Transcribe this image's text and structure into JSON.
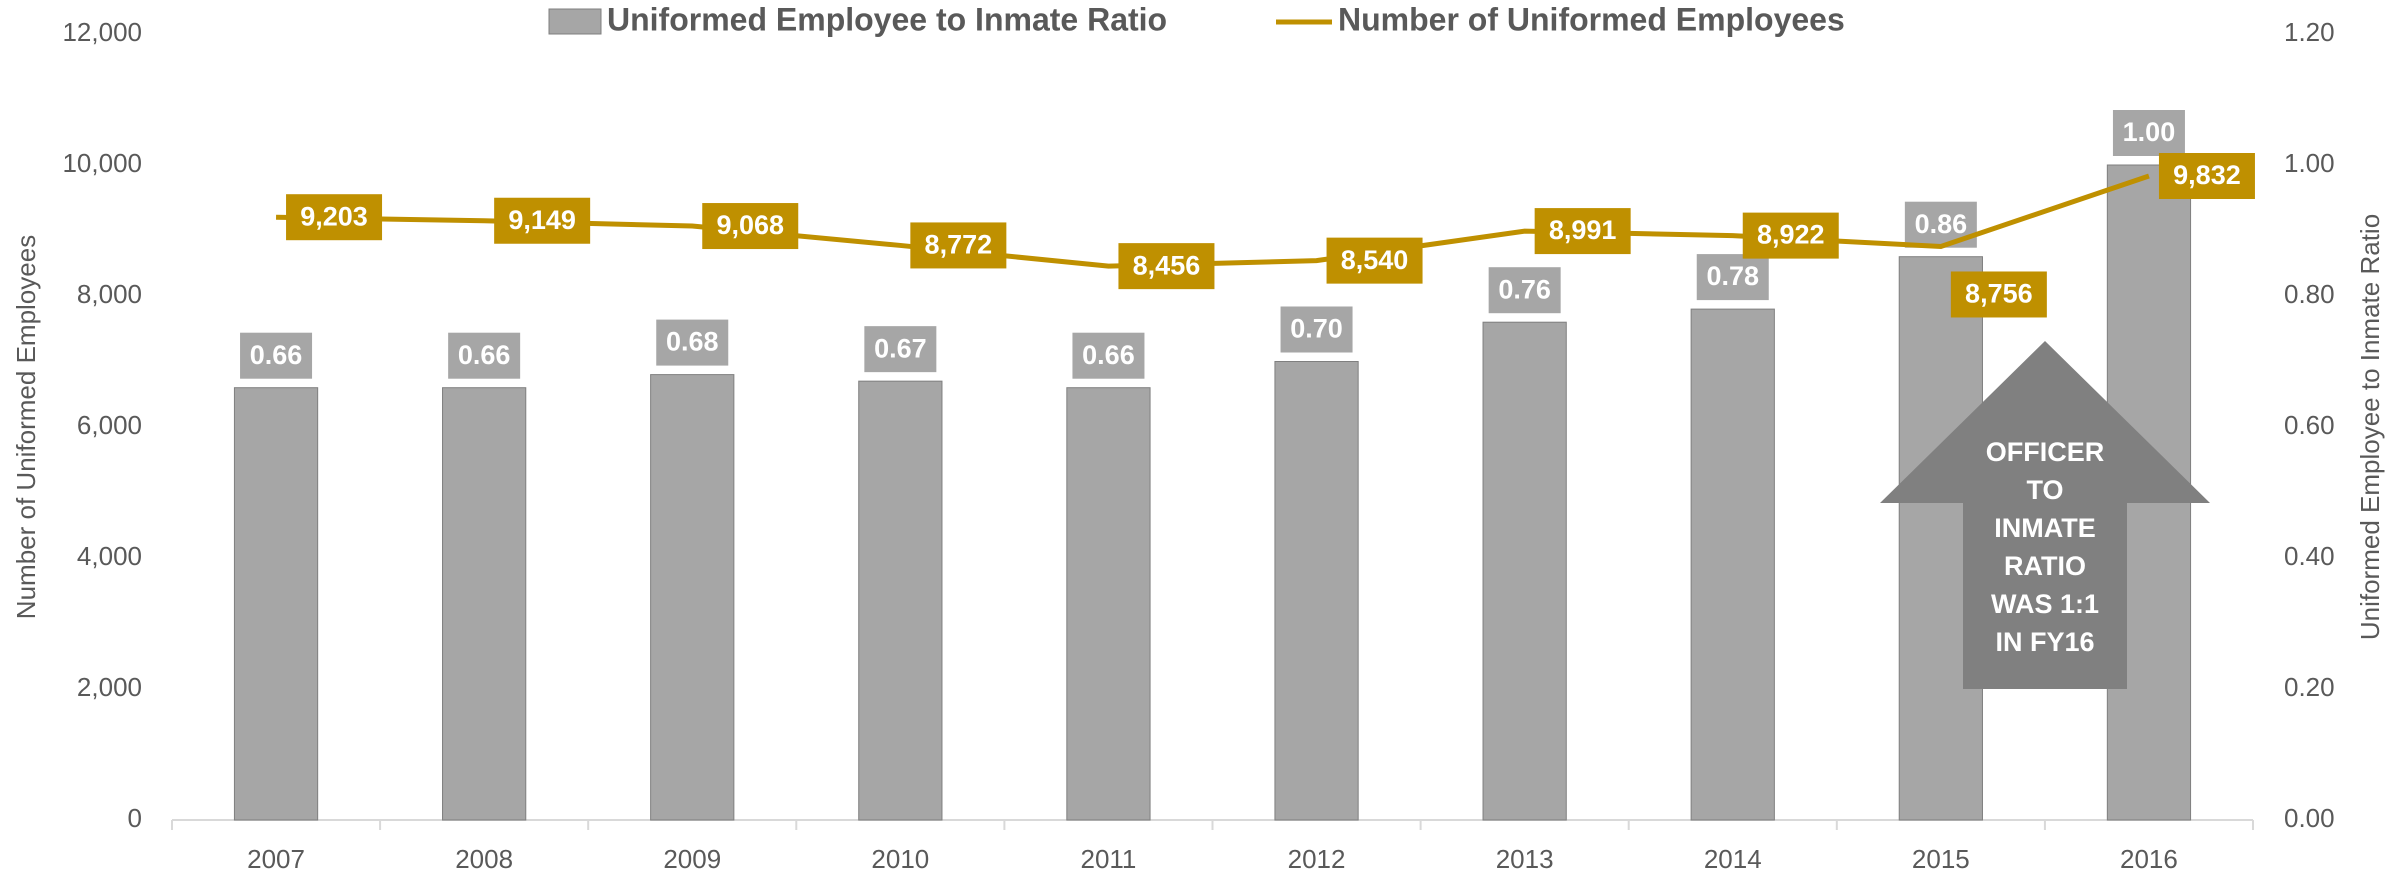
{
  "chart_data": {
    "type": "bar",
    "categories": [
      "2007",
      "2008",
      "2009",
      "2010",
      "2011",
      "2012",
      "2013",
      "2014",
      "2015",
      "2016"
    ],
    "series": [
      {
        "name": "Uniformed Employee to Inmate Ratio",
        "type": "bar",
        "axis": "y2",
        "color": "#a6a6a6",
        "values": [
          0.66,
          0.66,
          0.68,
          0.67,
          0.66,
          0.7,
          0.76,
          0.78,
          0.86,
          1.0
        ],
        "value_labels": [
          "0.66",
          "0.66",
          "0.68",
          "0.67",
          "0.66",
          "0.70",
          "0.76",
          "0.78",
          "0.86",
          "1.00"
        ]
      },
      {
        "name": "Number of Uniformed Employees",
        "type": "line",
        "color": "#bf9000",
        "values": [
          9203,
          9149,
          9068,
          8772,
          8456,
          8540,
          8991,
          8922,
          8756,
          9832
        ],
        "value_labels": [
          "9,203",
          "9,149",
          "9,068",
          "8,772",
          "8,456",
          "8,540",
          "8,991",
          "8,922",
          "8,756",
          "9,832"
        ]
      }
    ],
    "y_label": "Number of Uniformed Employees",
    "y2_label": "Uniformed Employee to Inmate Ratio",
    "ylim": [
      0,
      12000
    ],
    "yticks": [
      0,
      {
        "value": 2000,
        "label": "2,000"
      },
      {
        "value": 4000,
        "label": "4,000"
      },
      {
        "value": 6000,
        "label": "6,000"
      },
      {
        "value": 8000,
        "label": "8,000"
      },
      {
        "value": 10000,
        "label": "10,000"
      },
      {
        "value": 12000,
        "label": "12,000"
      }
    ],
    "y2lim": [
      0,
      1.2
    ],
    "y2ticks": [
      {
        "value": 0,
        "label": "0.00"
      },
      {
        "value": 0.2,
        "label": "0.20"
      },
      {
        "value": 0.4,
        "label": "0.40"
      },
      {
        "value": 0.6,
        "label": "0.60"
      },
      {
        "value": 0.8,
        "label": "0.80"
      },
      {
        "value": 1.0,
        "label": "1.00"
      },
      {
        "value": 1.2,
        "label": "1.20"
      }
    ],
    "annotation": [
      "OFFICER",
      "TO",
      "INMATE",
      "RATIO",
      "WAS 1:1",
      "IN FY16"
    ],
    "legend": "top"
  }
}
